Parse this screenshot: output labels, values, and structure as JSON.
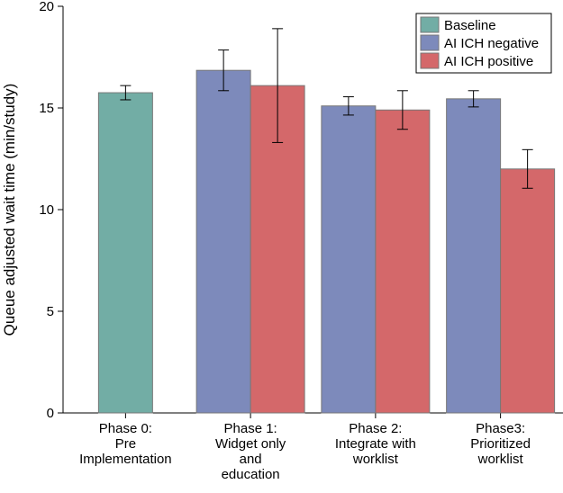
{
  "chart_data": {
    "type": "bar",
    "y_label": "Queue adjusted wait time (min/study)",
    "categories": [
      "Phase 0:\nPre\nImplementation",
      "Phase 1:\nWidget only\nand\neducation",
      "Phase 2:\nIntegrate with\nworklist",
      "Phase3:\nPrioritized\nworklist"
    ],
    "series": [
      {
        "name": "Baseline",
        "color": "#72ada5",
        "values": [
          15.75,
          null,
          null,
          null
        ],
        "errors": [
          0.35,
          null,
          null,
          null
        ]
      },
      {
        "name": "AI ICH negative",
        "color": "#7d8abb",
        "values": [
          null,
          16.85,
          15.1,
          15.45
        ],
        "errors": [
          null,
          1.0,
          0.45,
          0.4
        ]
      },
      {
        "name": "AI ICH positive",
        "color": "#d4686a",
        "values": [
          null,
          16.1,
          14.9,
          12.0
        ],
        "errors": [
          null,
          2.8,
          0.95,
          0.95
        ]
      }
    ],
    "ylim": [
      0,
      20
    ],
    "yticks": [
      0,
      5,
      10,
      15,
      20
    ],
    "grid": false,
    "legend": "upper right"
  }
}
